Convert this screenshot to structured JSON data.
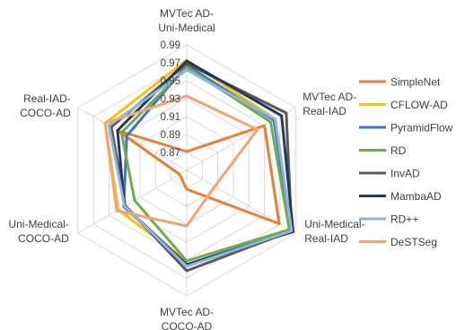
{
  "chart_data": {
    "type": "radar",
    "title": "",
    "axes": [
      [
        "MVTec AD-",
        "Uni-Medical"
      ],
      [
        "MVTec AD-",
        "Real-IAD"
      ],
      [
        "Uni-Medical-",
        "Real-IAD"
      ],
      [
        "MVTec AD-",
        "COCO-AD"
      ],
      [
        "Uni-Medical-",
        "COCO-AD"
      ],
      [
        "Real-IAD-",
        "COCO-AD"
      ]
    ],
    "rlim": [
      0.85,
      0.99
    ],
    "ticks": [
      "0.87",
      "0.89",
      "0.91",
      "0.93",
      "0.95",
      "0.97",
      "0.99"
    ],
    "tick_values": [
      0.87,
      0.89,
      0.91,
      0.93,
      0.95,
      0.97,
      0.99
    ],
    "grid": true,
    "legend_position": "right",
    "series": [
      {
        "name": "SimpleNet",
        "color": "#ED7D31",
        "values": [
          0.871,
          0.95,
          0.969,
          0.871,
          0.859,
          0.939
        ]
      },
      {
        "name": "CFLOW-AD",
        "color": "#FFC000",
        "values": [
          0.973,
          0.964,
          0.982,
          0.951,
          0.938,
          0.955
        ]
      },
      {
        "name": "PyramidFlow",
        "color": "#4472C4",
        "values": [
          0.967,
          0.962,
          0.984,
          0.955,
          0.931,
          0.927
        ]
      },
      {
        "name": "RD",
        "color": "#70AD47",
        "values": [
          0.965,
          0.958,
          0.982,
          0.951,
          0.917,
          0.934
        ]
      },
      {
        "name": "InvAD",
        "color": "#595959",
        "values": [
          0.969,
          0.978,
          0.985,
          0.962,
          0.929,
          0.947
        ]
      },
      {
        "name": "MambaAD",
        "color": "#203864",
        "values": [
          0.972,
          0.972,
          0.987,
          0.955,
          0.93,
          0.939
        ]
      },
      {
        "name": "RD++",
        "color": "#8FB4DD",
        "values": [
          0.962,
          0.964,
          0.985,
          0.957,
          0.93,
          0.95
        ]
      },
      {
        "name": "DeSTSeg",
        "color": "#F4A46E",
        "values": [
          0.933,
          0.941,
          0.886,
          0.912,
          0.94,
          0.955
        ]
      }
    ]
  }
}
